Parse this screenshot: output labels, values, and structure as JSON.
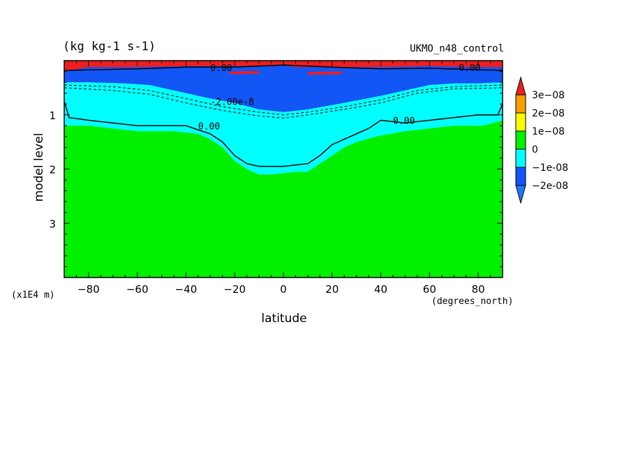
{
  "header": {
    "units": "(kg kg-1 s-1)",
    "source": "UKMO_n48_control"
  },
  "axes": {
    "xlabel": "latitude",
    "ylabel": "model level",
    "x_units_note": "(degrees_north)",
    "y_units_note": "(x1E4 m)"
  },
  "chart_data": {
    "type": "heatmap",
    "title": "(kg kg-1 s-1)",
    "subtitle": "UKMO_n48_control",
    "xlabel": "latitude",
    "ylabel": "model level",
    "xlim": [
      -90,
      90
    ],
    "ylim": [
      4.0,
      0.0
    ],
    "x_ticks": [
      -80,
      -60,
      -40,
      -20,
      0,
      20,
      40,
      60,
      80
    ],
    "y_ticks": [
      1,
      2,
      3
    ],
    "y_tick_labels": [
      "1",
      "2",
      "3"
    ],
    "colorbar": {
      "levels": [
        -2e-08,
        -1e-08,
        0,
        1e-08,
        2e-08,
        3e-08
      ],
      "labels": [
        "-2e-08",
        "-1e-08",
        "0",
        "1e-08",
        "2e-08",
        "3e-08"
      ],
      "colors": [
        "#1f78f5",
        "#1257f5",
        "#00ffff",
        "#00f000",
        "#fafa00",
        "#f5a000",
        "#ee1e1e"
      ]
    },
    "contour_labels": [
      "0.00",
      "0.00",
      "0.00",
      "0.00",
      "-2.00e-8"
    ],
    "regions": [
      {
        "name": "positive-top",
        "color": "#ee1e1e",
        "polygon": [
          [
            -90,
            0.0
          ],
          [
            90,
            0.0
          ],
          [
            90,
            0.18
          ],
          [
            -90,
            0.18
          ]
        ]
      },
      {
        "name": "negative-upper",
        "color": "#1257f5",
        "polygon": [
          [
            -90,
            0.2
          ],
          [
            -80,
            0.12
          ],
          [
            -60,
            0.12
          ],
          [
            -40,
            0.1
          ],
          [
            -20,
            0.1
          ],
          [
            -5,
            0.1
          ],
          [
            0,
            0.08
          ],
          [
            5,
            0.12
          ],
          [
            20,
            0.12
          ],
          [
            40,
            0.12
          ],
          [
            60,
            0.1
          ],
          [
            80,
            0.12
          ],
          [
            90,
            0.12
          ],
          [
            90,
            0.4
          ],
          [
            80,
            0.42
          ],
          [
            70,
            0.42
          ],
          [
            60,
            0.45
          ],
          [
            50,
            0.55
          ],
          [
            40,
            0.65
          ],
          [
            25,
            0.78
          ],
          [
            10,
            0.9
          ],
          [
            0,
            0.95
          ],
          [
            -10,
            0.9
          ],
          [
            -20,
            0.78
          ],
          [
            -30,
            0.7
          ],
          [
            -45,
            0.55
          ],
          [
            -55,
            0.45
          ],
          [
            -65,
            0.42
          ],
          [
            -80,
            0.4
          ],
          [
            -90,
            0.4
          ]
        ]
      },
      {
        "name": "negative-mid",
        "color": "#00ffff",
        "polygon": [
          [
            -90,
            0.4
          ],
          [
            -80,
            0.4
          ],
          [
            -65,
            0.42
          ],
          [
            -55,
            0.45
          ],
          [
            -45,
            0.55
          ],
          [
            -30,
            0.7
          ],
          [
            -20,
            0.78
          ],
          [
            -10,
            0.9
          ],
          [
            0,
            0.95
          ],
          [
            10,
            0.9
          ],
          [
            25,
            0.78
          ],
          [
            40,
            0.65
          ],
          [
            50,
            0.55
          ],
          [
            60,
            0.45
          ],
          [
            70,
            0.42
          ],
          [
            80,
            0.42
          ],
          [
            90,
            0.4
          ],
          [
            90,
            1.1
          ],
          [
            82,
            1.2
          ],
          [
            70,
            1.2
          ],
          [
            60,
            1.25
          ],
          [
            50,
            1.3
          ],
          [
            38,
            1.4
          ],
          [
            30,
            1.5
          ],
          [
            25,
            1.6
          ],
          [
            20,
            1.75
          ],
          [
            15,
            1.9
          ],
          [
            10,
            2.05
          ],
          [
            5,
            2.05
          ],
          [
            -5,
            2.1
          ],
          [
            -10,
            2.1
          ],
          [
            -15,
            2.0
          ],
          [
            -20,
            1.85
          ],
          [
            -25,
            1.6
          ],
          [
            -30,
            1.45
          ],
          [
            -35,
            1.35
          ],
          [
            -45,
            1.3
          ],
          [
            -60,
            1.3
          ],
          [
            -70,
            1.25
          ],
          [
            -80,
            1.2
          ],
          [
            -90,
            1.2
          ]
        ]
      },
      {
        "name": "positive-lower",
        "color": "#00f000",
        "polygon": [
          [
            -90,
            1.2
          ],
          [
            -80,
            1.2
          ],
          [
            -70,
            1.25
          ],
          [
            -60,
            1.3
          ],
          [
            -45,
            1.3
          ],
          [
            -35,
            1.35
          ],
          [
            -30,
            1.45
          ],
          [
            -25,
            1.6
          ],
          [
            -20,
            1.85
          ],
          [
            -15,
            2.0
          ],
          [
            -10,
            2.1
          ],
          [
            -5,
            2.1
          ],
          [
            5,
            2.05
          ],
          [
            10,
            2.05
          ],
          [
            15,
            1.9
          ],
          [
            20,
            1.75
          ],
          [
            25,
            1.6
          ],
          [
            30,
            1.5
          ],
          [
            38,
            1.4
          ],
          [
            50,
            1.3
          ],
          [
            60,
            1.25
          ],
          [
            70,
            1.2
          ],
          [
            82,
            1.2
          ],
          [
            90,
            1.1
          ],
          [
            90,
            4.0
          ],
          [
            -90,
            4.0
          ]
        ]
      },
      {
        "name": "negative-strong-blob-1",
        "color": "#ee1e1e",
        "polygon": [
          [
            -22,
            0.2
          ],
          [
            -10,
            0.19
          ],
          [
            -10,
            0.24
          ],
          [
            -22,
            0.25
          ]
        ]
      },
      {
        "name": "negative-strong-blob-2",
        "color": "#ee1e1e",
        "polygon": [
          [
            10,
            0.21
          ],
          [
            24,
            0.2
          ],
          [
            24,
            0.25
          ],
          [
            10,
            0.26
          ]
        ]
      }
    ],
    "contours": [
      {
        "style": "solid",
        "points": [
          [
            -90,
            0.18
          ],
          [
            -60,
            0.15
          ],
          [
            -40,
            0.12
          ],
          [
            -20,
            0.12
          ],
          [
            0,
            0.08
          ],
          [
            20,
            0.12
          ],
          [
            40,
            0.15
          ],
          [
            60,
            0.14
          ],
          [
            90,
            0.18
          ]
        ]
      },
      {
        "style": "dashed",
        "points": [
          [
            -90,
            0.45
          ],
          [
            -70,
            0.48
          ],
          [
            -55,
            0.55
          ],
          [
            -40,
            0.7
          ],
          [
            -25,
            0.85
          ],
          [
            -10,
            0.95
          ],
          [
            0,
            1.0
          ],
          [
            10,
            0.95
          ],
          [
            25,
            0.85
          ],
          [
            40,
            0.72
          ],
          [
            55,
            0.55
          ],
          [
            70,
            0.48
          ],
          [
            90,
            0.45
          ]
        ]
      },
      {
        "style": "dashed",
        "points": [
          [
            -90,
            0.5
          ],
          [
            -70,
            0.55
          ],
          [
            -55,
            0.62
          ],
          [
            -40,
            0.78
          ],
          [
            -25,
            0.92
          ],
          [
            -10,
            1.02
          ],
          [
            0,
            1.06
          ],
          [
            10,
            1.0
          ],
          [
            25,
            0.9
          ],
          [
            40,
            0.78
          ],
          [
            55,
            0.6
          ],
          [
            70,
            0.52
          ],
          [
            90,
            0.5
          ]
        ]
      },
      {
        "style": "solid",
        "points": [
          [
            -90,
            0.75
          ],
          [
            -88,
            1.05
          ],
          [
            -80,
            1.1
          ],
          [
            -70,
            1.15
          ],
          [
            -60,
            1.2
          ],
          [
            -40,
            1.2
          ],
          [
            -30,
            1.35
          ],
          [
            -25,
            1.5
          ],
          [
            -20,
            1.75
          ],
          [
            -15,
            1.9
          ],
          [
            -10,
            1.95
          ],
          [
            0,
            1.95
          ],
          [
            10,
            1.9
          ],
          [
            15,
            1.75
          ],
          [
            20,
            1.55
          ],
          [
            25,
            1.45
          ],
          [
            35,
            1.25
          ],
          [
            40,
            1.1
          ],
          [
            50,
            1.15
          ],
          [
            60,
            1.1
          ],
          [
            70,
            1.05
          ],
          [
            80,
            1.0
          ],
          [
            88,
            1.0
          ],
          [
            90,
            0.8
          ]
        ]
      }
    ],
    "contour_label_positions": [
      {
        "text": "0.00",
        "x": -35,
        "y": 1.2
      },
      {
        "text": "0.00",
        "x": 45,
        "y": 1.1
      },
      {
        "text": "0.00",
        "x": 72,
        "y": 0.12
      },
      {
        "text": "0.00",
        "x": -30,
        "y": 0.13
      },
      {
        "text": "-2.00e-8",
        "x": -30,
        "y": 0.75
      }
    ]
  }
}
